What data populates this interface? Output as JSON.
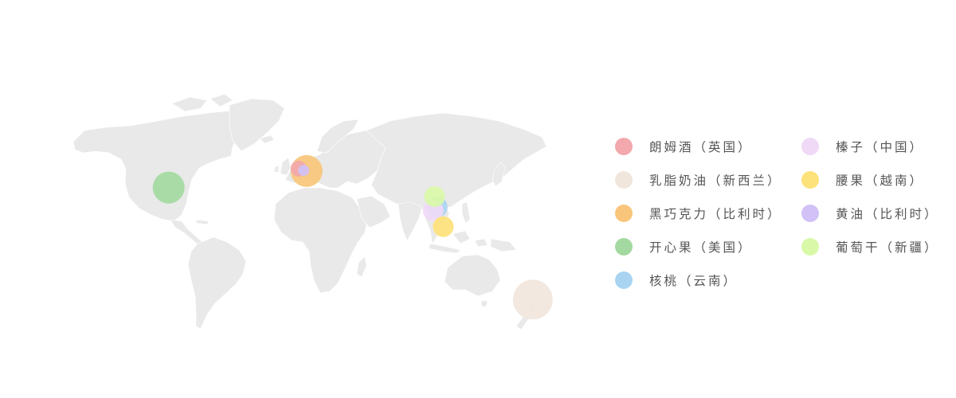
{
  "map": {
    "land_color": "#e9e9e9",
    "items": [
      {
        "id": "rum",
        "label": "朗姆酒（英国）",
        "color": "#f2a8ad",
        "lon": -1.5,
        "lat": 52.5,
        "size": "small"
      },
      {
        "id": "cream",
        "label": "乳脂奶油（新西兰）",
        "color": "#f1e6dc",
        "lon": 172.5,
        "lat": -41.0,
        "size": "xlarge"
      },
      {
        "id": "chocolate",
        "label": "黑巧克力（比利时）",
        "color": "#f8c57a",
        "lon": 4.5,
        "lat": 50.8,
        "size": "large"
      },
      {
        "id": "pistachio",
        "label": "开心果（美国）",
        "color": "#a3d9a0",
        "lon": -98.0,
        "lat": 39.0,
        "size": "large"
      },
      {
        "id": "walnut",
        "label": "核桃（云南）",
        "color": "#a9d4f1",
        "lon": 101.5,
        "lat": 25.0,
        "size": "medium"
      },
      {
        "id": "hazelnut",
        "label": "榛子（中国）",
        "color": "#efd9f7",
        "lon": 98.5,
        "lat": 22.5,
        "size": "medium"
      },
      {
        "id": "cashew",
        "label": "腰果（越南）",
        "color": "#fde17a",
        "lon": 106.0,
        "lat": 11.0,
        "size": "medium"
      },
      {
        "id": "butter",
        "label": "黄油（比利时）",
        "color": "#d1c1f6",
        "lon": 2.3,
        "lat": 51.2,
        "size": "tiny"
      },
      {
        "id": "raisin",
        "label": "葡萄干（新疆）",
        "color": "#d9f9a8",
        "lon": 99.5,
        "lat": 32.5,
        "size": "medium"
      }
    ]
  }
}
